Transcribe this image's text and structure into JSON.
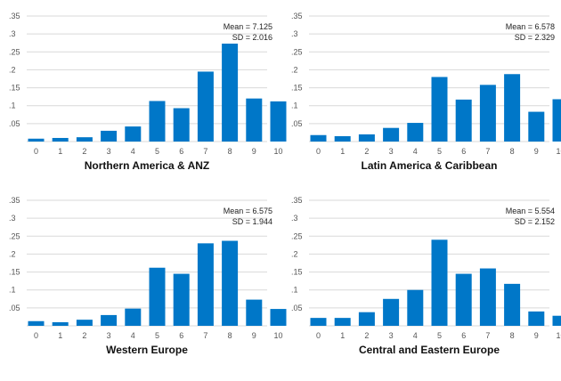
{
  "chart_data": [
    {
      "type": "bar",
      "title": "Northern America & ANZ",
      "mean_label": "Mean = 7.125",
      "sd_label": "SD = 2.016",
      "categories": [
        "0",
        "1",
        "2",
        "3",
        "4",
        "5",
        "6",
        "7",
        "8",
        "9",
        "10"
      ],
      "values": [
        0.008,
        0.01,
        0.012,
        0.03,
        0.042,
        0.113,
        0.093,
        0.195,
        0.273,
        0.12,
        0.112
      ],
      "ylim": [
        0,
        0.35
      ],
      "yticks": [
        ".05",
        ".1",
        ".15",
        ".2",
        ".25",
        ".3",
        ".35"
      ],
      "color": "#0077c8",
      "grid": true
    },
    {
      "type": "bar",
      "title": "Latin America & Caribbean",
      "mean_label": "Mean = 6.578",
      "sd_label": "SD = 2.329",
      "categories": [
        "0",
        "1",
        "2",
        "3",
        "4",
        "5",
        "6",
        "7",
        "8",
        "9",
        "10"
      ],
      "values": [
        0.018,
        0.015,
        0.02,
        0.038,
        0.052,
        0.18,
        0.117,
        0.158,
        0.188,
        0.083,
        0.118
      ],
      "ylim": [
        0,
        0.35
      ],
      "yticks": [
        ".05",
        ".1",
        ".15",
        ".2",
        ".25",
        ".3",
        ".35"
      ],
      "color": "#0077c8",
      "grid": true
    },
    {
      "type": "bar",
      "title": "Western Europe",
      "mean_label": "Mean = 6.575",
      "sd_label": "SD = 1.944",
      "categories": [
        "0",
        "1",
        "2",
        "3",
        "4",
        "5",
        "6",
        "7",
        "8",
        "9",
        "10"
      ],
      "values": [
        0.013,
        0.01,
        0.017,
        0.03,
        0.048,
        0.162,
        0.145,
        0.23,
        0.237,
        0.073,
        0.047
      ],
      "ylim": [
        0,
        0.35
      ],
      "yticks": [
        ".05",
        ".1",
        ".15",
        ".2",
        ".25",
        ".3",
        ".35"
      ],
      "color": "#0077c8",
      "grid": true
    },
    {
      "type": "bar",
      "title": "Central and Eastern Europe",
      "mean_label": "Mean = 5.554",
      "sd_label": "SD = 2.152",
      "categories": [
        "0",
        "1",
        "2",
        "3",
        "4",
        "5",
        "6",
        "7",
        "8",
        "9",
        "10"
      ],
      "values": [
        0.022,
        0.022,
        0.038,
        0.075,
        0.1,
        0.24,
        0.145,
        0.16,
        0.117,
        0.04,
        0.028
      ],
      "ylim": [
        0,
        0.35
      ],
      "yticks": [
        ".05",
        ".1",
        ".15",
        ".2",
        ".25",
        ".3",
        ".35"
      ],
      "color": "#0077c8",
      "grid": true
    }
  ]
}
